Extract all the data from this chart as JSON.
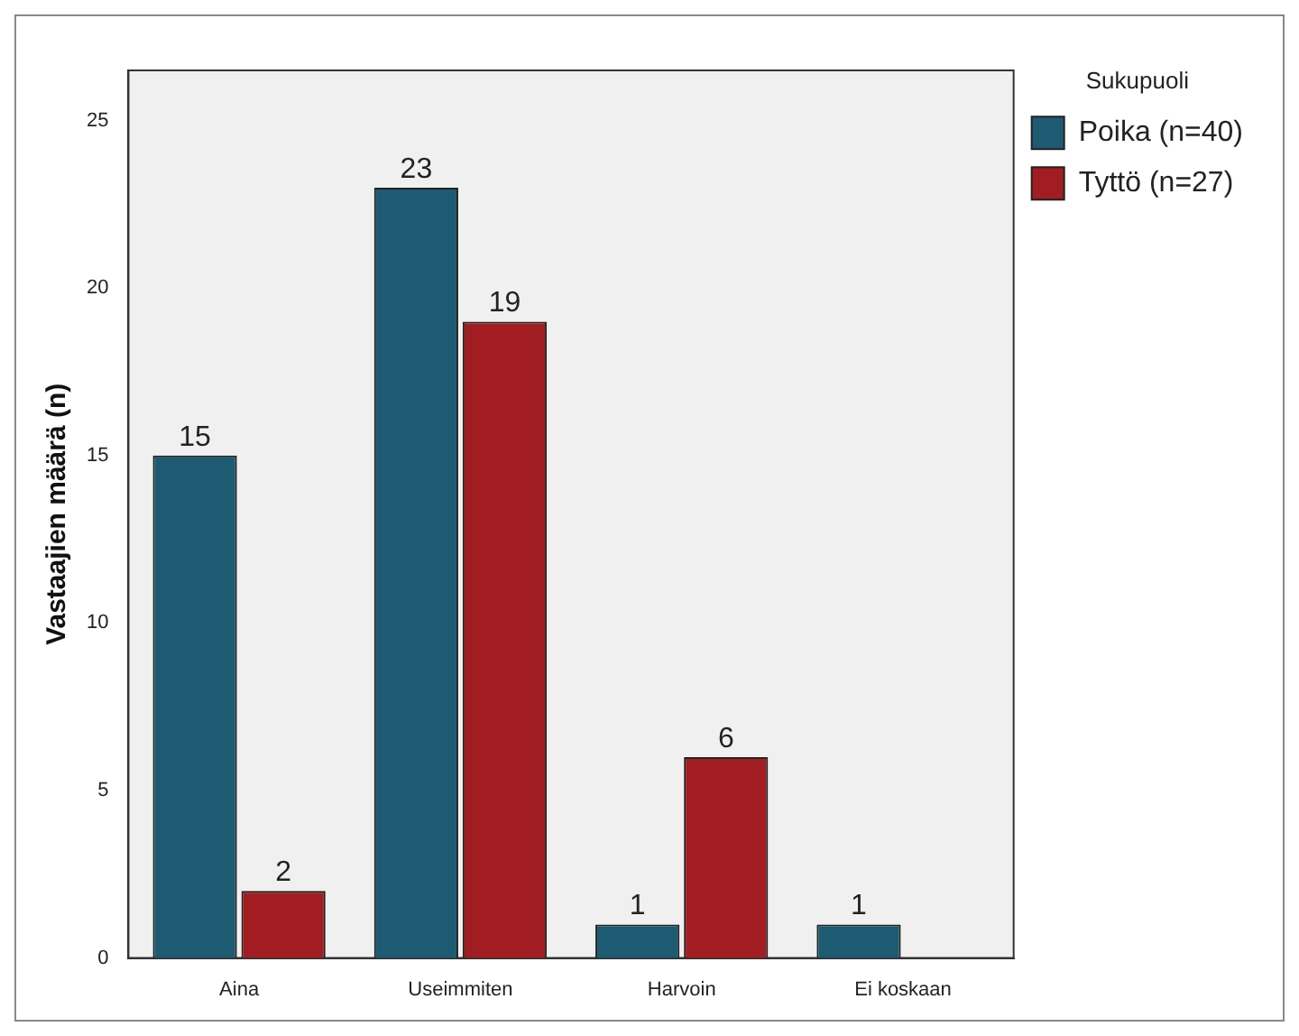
{
  "chart_data": {
    "type": "bar",
    "ylabel": "Vastaajien määrä (n)",
    "legend_title": "Sukupuoli",
    "categories": [
      "Aina",
      "Useimmiten",
      "Harvoin",
      "Ei koskaan"
    ],
    "series": [
      {
        "name": "Poika (n=40)",
        "color": "#1d5b72",
        "values": [
          15,
          23,
          1,
          1
        ]
      },
      {
        "name": "Tyttö (n=27)",
        "color": "#a11d21",
        "values": [
          2,
          19,
          6,
          null
        ]
      }
    ],
    "ylim": [
      0,
      26.5
    ],
    "yticks": [
      0,
      5,
      10,
      15,
      20,
      25
    ],
    "grid": false,
    "legend": "right",
    "data_labels": true
  }
}
